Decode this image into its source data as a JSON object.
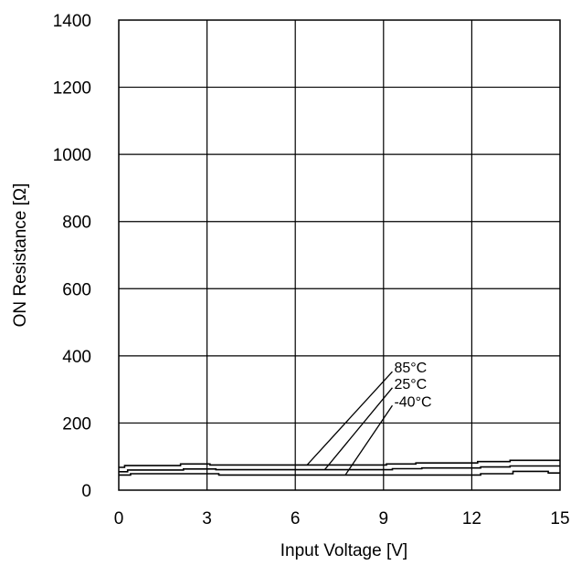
{
  "chart_data": {
    "type": "line",
    "xlabel": "Input Voltage [V]",
    "ylabel": "ON Resistance [Ω]",
    "xlim": [
      0,
      15
    ],
    "ylim": [
      0,
      1400
    ],
    "xticks": [
      0,
      3,
      6,
      9,
      12,
      15
    ],
    "yticks": [
      0,
      200,
      400,
      600,
      800,
      1000,
      1200,
      1400
    ],
    "grid": true,
    "series": [
      {
        "name": "85°C",
        "x": [
          0,
          0.2,
          0.2,
          2.1,
          2.1,
          3.1,
          3.1,
          9.1,
          9.1,
          10.1,
          10.1,
          12.2,
          12.2,
          13.3,
          13.3,
          15
        ],
        "y": [
          68,
          68,
          73,
          73,
          78,
          78,
          75,
          75,
          78,
          78,
          81,
          81,
          85,
          85,
          89,
          89
        ]
      },
      {
        "name": "25°C",
        "x": [
          0,
          0.3,
          0.3,
          2.2,
          2.2,
          3.3,
          3.3,
          9.3,
          9.3,
          10.3,
          10.3,
          12.3,
          12.3,
          13.3,
          13.3,
          15
        ],
        "y": [
          55,
          55,
          60,
          60,
          63,
          63,
          61,
          61,
          64,
          64,
          66,
          66,
          69,
          69,
          72,
          72
        ]
      },
      {
        "name": "-40°C",
        "x": [
          0,
          0.4,
          0.4,
          3.4,
          3.4,
          12.3,
          12.3,
          13.4,
          13.4,
          14.6,
          14.6,
          15
        ],
        "y": [
          45,
          45,
          49,
          49,
          45,
          45,
          49,
          49,
          56,
          56,
          51,
          51
        ]
      }
    ],
    "annotations": [
      {
        "text": "85°C",
        "series": "85°C",
        "x": 6.4,
        "y": 75,
        "tip_x": 9.3,
        "tip_y": 353
      },
      {
        "text": "25°C",
        "series": "25°C",
        "x": 7.0,
        "y": 61,
        "tip_x": 9.3,
        "tip_y": 305
      },
      {
        "text": "-40°C",
        "series": "-40°C",
        "x": 7.7,
        "y": 45,
        "tip_x": 9.3,
        "tip_y": 252
      }
    ]
  }
}
